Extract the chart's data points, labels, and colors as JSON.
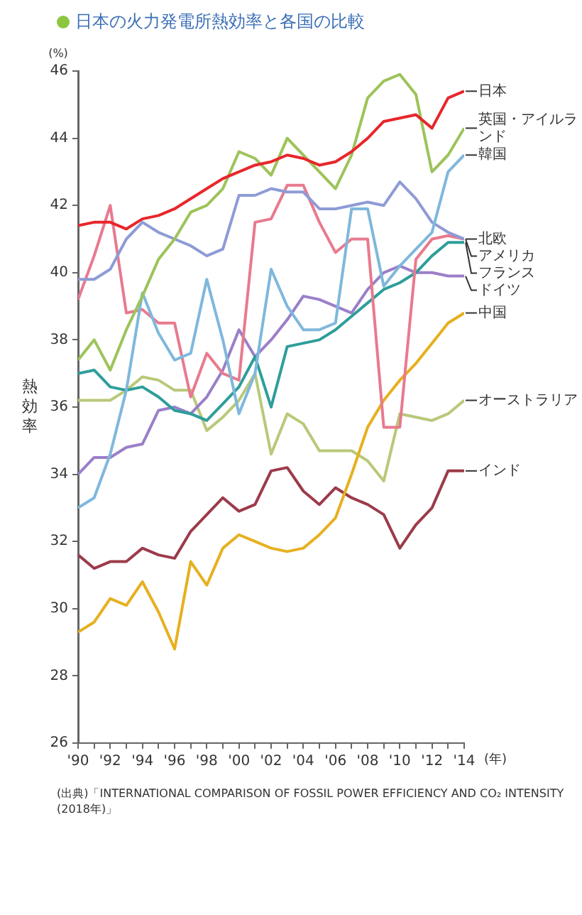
{
  "chart_data": {
    "type": "line",
    "title": "日本の火力発電所熱効率と各国の比較",
    "ylabel": "熱効率",
    "xlabel": "(年)",
    "annotations": [
      "(%)",
      "(出典)「INTERNATIONAL COMPARISON OF FOSSIL POWER EFFICIENCY AND CO₂ INTENSITY (2018年)」"
    ],
    "x": [
      1990,
      1991,
      1992,
      1993,
      1994,
      1995,
      1996,
      1997,
      1998,
      1999,
      2000,
      2001,
      2002,
      2003,
      2004,
      2005,
      2006,
      2007,
      2008,
      2009,
      2010,
      2011,
      2012,
      2013,
      2014
    ],
    "series": [
      {
        "name": "日本",
        "color": "#e8262b",
        "values": [
          41.4,
          41.5,
          41.5,
          41.3,
          41.6,
          41.7,
          41.9,
          42.2,
          42.5,
          42.8,
          43.0,
          43.2,
          43.3,
          43.5,
          43.4,
          43.2,
          43.3,
          43.6,
          44.0,
          44.5,
          44.6,
          44.7,
          44.3,
          45.2,
          45.4
        ]
      },
      {
        "name": "英国・アイルランド",
        "color": "#9dc35a",
        "values": [
          37.4,
          38.0,
          37.1,
          38.3,
          39.3,
          40.4,
          41.0,
          41.8,
          42.0,
          42.5,
          43.6,
          43.4,
          42.9,
          44.0,
          43.5,
          43.0,
          42.5,
          43.5,
          45.2,
          45.7,
          45.9,
          45.3,
          43.0,
          43.5,
          44.3
        ]
      },
      {
        "name": "韓国",
        "color": "#7fb8dc",
        "values": [
          33.0,
          33.3,
          34.6,
          36.5,
          39.4,
          38.2,
          37.4,
          37.6,
          39.8,
          38.0,
          35.8,
          37.0,
          40.1,
          39.0,
          38.3,
          38.3,
          38.5,
          41.9,
          41.9,
          39.6,
          40.2,
          40.7,
          41.2,
          43.0,
          43.5
        ]
      },
      {
        "name": "北欧",
        "color": "#8e9bd6",
        "values": [
          39.8,
          39.8,
          40.1,
          41.0,
          41.5,
          41.2,
          41.0,
          40.8,
          40.5,
          40.7,
          42.3,
          42.3,
          42.5,
          42.4,
          42.4,
          41.9,
          41.9,
          42.0,
          42.1,
          42.0,
          42.7,
          42.2,
          41.5,
          41.2,
          41.0
        ]
      },
      {
        "name": "アメリカ",
        "color": "#e87a8e",
        "values": [
          39.2,
          40.5,
          42.0,
          38.8,
          38.9,
          38.5,
          38.5,
          36.3,
          37.6,
          37.0,
          36.8,
          41.5,
          41.6,
          42.6,
          42.6,
          41.5,
          40.6,
          41.0,
          41.0,
          35.4,
          35.4,
          40.4,
          41.0,
          41.1,
          41.0
        ]
      },
      {
        "name": "フランス",
        "color": "#2e9e9a",
        "values": [
          37.0,
          37.1,
          36.6,
          36.5,
          36.6,
          36.3,
          35.9,
          35.8,
          35.6,
          36.1,
          36.6,
          37.5,
          36.0,
          37.8,
          37.9,
          38.0,
          38.3,
          38.7,
          39.1,
          39.5,
          39.7,
          40.0,
          40.5,
          40.9,
          40.9
        ]
      },
      {
        "name": "ドイツ",
        "color": "#9b7fc9",
        "values": [
          34.0,
          34.5,
          34.5,
          34.8,
          34.9,
          35.9,
          36.0,
          35.8,
          36.3,
          37.1,
          38.3,
          37.5,
          38.0,
          38.6,
          39.3,
          39.2,
          39.0,
          38.8,
          39.5,
          40.0,
          40.2,
          40.0,
          40.0,
          39.9,
          39.9
        ]
      },
      {
        "name": "中国",
        "color": "#e6b020",
        "values": [
          29.3,
          29.6,
          30.3,
          30.1,
          30.8,
          29.9,
          28.8,
          31.4,
          30.7,
          31.8,
          32.2,
          32.0,
          31.8,
          31.7,
          31.8,
          32.2,
          32.7,
          34.0,
          35.4,
          36.2,
          36.8,
          37.3,
          37.9,
          38.5,
          38.8
        ]
      },
      {
        "name": "オーストラリア",
        "color": "#b8c97a",
        "values": [
          36.2,
          36.2,
          36.2,
          36.5,
          36.9,
          36.8,
          36.5,
          36.5,
          35.3,
          35.7,
          36.2,
          37.0,
          34.6,
          35.8,
          35.5,
          34.7,
          34.7,
          34.7,
          34.4,
          33.8,
          35.8,
          35.7,
          35.6,
          35.8,
          36.2
        ]
      },
      {
        "name": "インド",
        "color": "#9c3b4a",
        "values": [
          31.6,
          31.2,
          31.4,
          31.4,
          31.8,
          31.6,
          31.5,
          32.3,
          32.8,
          33.3,
          32.9,
          33.1,
          34.1,
          34.2,
          33.5,
          33.1,
          33.6,
          33.3,
          33.1,
          32.8,
          31.8,
          32.5,
          33.0,
          34.1,
          34.1
        ]
      }
    ],
    "xlim": [
      1990,
      2014
    ],
    "xticks": [
      {
        "value": 1990,
        "label": "'90"
      },
      {
        "value": 1991,
        "label": null
      },
      {
        "value": 1992,
        "label": "'92"
      },
      {
        "value": 1993,
        "label": null
      },
      {
        "value": 1994,
        "label": "'94"
      },
      {
        "value": 1995,
        "label": null
      },
      {
        "value": 1996,
        "label": "'96"
      },
      {
        "value": 1997,
        "label": null
      },
      {
        "value": 1998,
        "label": "'98"
      },
      {
        "value": 1999,
        "label": null
      },
      {
        "value": 2000,
        "label": "'00"
      },
      {
        "value": 2001,
        "label": null
      },
      {
        "value": 2002,
        "label": "'02"
      },
      {
        "value": 2003,
        "label": null
      },
      {
        "value": 2004,
        "label": "'04"
      },
      {
        "value": 2005,
        "label": null
      },
      {
        "value": 2006,
        "label": "'06"
      },
      {
        "value": 2007,
        "label": null
      },
      {
        "value": 2008,
        "label": "'08"
      },
      {
        "value": 2009,
        "label": null
      },
      {
        "value": 2010,
        "label": "'10"
      },
      {
        "value": 2011,
        "label": null
      },
      {
        "value": 2012,
        "label": "'12"
      },
      {
        "value": 2013,
        "label": null
      },
      {
        "value": 2014,
        "label": "'14"
      }
    ],
    "ylim": [
      26,
      46
    ],
    "yticks": [
      26,
      28,
      30,
      32,
      34,
      36,
      38,
      40,
      42,
      44,
      46
    ],
    "grid": false,
    "legend": false
  }
}
